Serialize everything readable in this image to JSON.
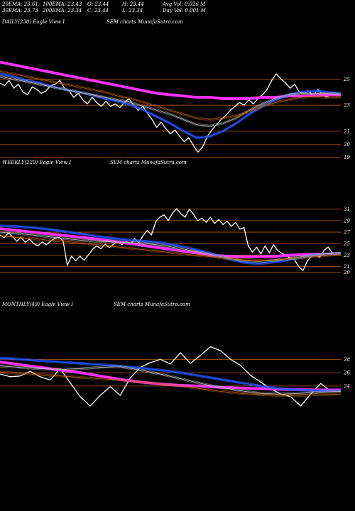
{
  "header": {
    "ema20": "20EMA: 23.61",
    "ema30": "30EMA: 23.73",
    "ema100": "100EMA: 23.43",
    "ema200": "200EMA: 23.34",
    "open": "O: 23.44",
    "close": "C: 23.44",
    "high": "H: 23.44",
    "low": "L: 23.34",
    "avgvol": "Avg Vol: 0.026  M",
    "dayvol": "Day Vol: 0.001 M"
  },
  "colors": {
    "price": "#ffffff",
    "ema_blue": "#2255ff",
    "ema_magenta": "#ff33ff",
    "ema_orange": "#cc6600",
    "ema_gray": "#bbbbbb",
    "level": "#b85a10"
  },
  "chart_data": [
    {
      "type": "line",
      "title": "DAILY(230) Eagle  View  I",
      "subtitle": "SEM charts MunafaSutra.com",
      "y_ticks": [
        "25",
        "23",
        "21",
        "20",
        "19"
      ],
      "series": [
        {
          "role": "price",
          "values": [
            24.7,
            24.5,
            24.9,
            24.3,
            24.6,
            24.0,
            23.8,
            24.4,
            24.2,
            23.9,
            24.1,
            24.5,
            24.6,
            24.9,
            24.3,
            24.1,
            23.6,
            23.9,
            23.4,
            23.1,
            23.6,
            23.2,
            22.9,
            23.3,
            22.9,
            23.1,
            22.8,
            23.2,
            23.5,
            23.0,
            22.6,
            22.9,
            22.4,
            21.9,
            21.3,
            21.7,
            21.2,
            20.8,
            21.1,
            20.6,
            20.2,
            20.5,
            19.9,
            19.4,
            19.8,
            20.6,
            21.1,
            21.5,
            21.9,
            22.2,
            22.6,
            22.9,
            23.2,
            23.0,
            23.4,
            23.1,
            23.5,
            23.8,
            24.2,
            24.9,
            25.4,
            25.0,
            24.7,
            24.3,
            24.6,
            24.0,
            23.9,
            24.1,
            23.7,
            24.2,
            23.8,
            23.6,
            23.9,
            23.7,
            23.8
          ]
        },
        {
          "role": "ema_magenta",
          "values": [
            26.3,
            26.1,
            25.9,
            25.7,
            25.5,
            25.3,
            25.1,
            24.9,
            24.7,
            24.5,
            24.3,
            24.1,
            23.9,
            23.8,
            23.7,
            23.6,
            23.6,
            23.5,
            23.5,
            23.5,
            23.6,
            23.6,
            23.7,
            23.7,
            23.75,
            23.8,
            23.8
          ]
        },
        {
          "role": "ema_blue",
          "values": [
            25.4,
            25.2,
            24.9,
            24.7,
            24.4,
            24.2,
            24.0,
            23.8,
            23.5,
            23.3,
            23.0,
            22.6,
            22.1,
            21.6,
            21.0,
            20.5,
            20.6,
            21.0,
            21.6,
            22.3,
            22.9,
            23.4,
            23.8,
            24.0,
            24.1,
            24.0,
            23.9
          ]
        },
        {
          "role": "ema_gray",
          "values": [
            25.2,
            25.0,
            24.8,
            24.6,
            24.4,
            24.2,
            24.0,
            23.8,
            23.6,
            23.4,
            23.2,
            22.9,
            22.6,
            22.3,
            21.9,
            21.5,
            21.4,
            21.6,
            22.0,
            22.6,
            23.1,
            23.5,
            23.8,
            23.9,
            23.9,
            23.9,
            23.85
          ]
        },
        {
          "role": "ema_orange",
          "values": [
            25.6,
            25.4,
            25.2,
            25.0,
            24.8,
            24.6,
            24.4,
            24.2,
            24.0,
            23.7,
            23.5,
            23.2,
            22.9,
            22.6,
            22.3,
            22.0,
            21.9,
            22.0,
            22.2,
            22.5,
            22.9,
            23.2,
            23.4,
            23.6,
            23.65,
            23.6,
            23.6
          ]
        }
      ]
    },
    {
      "type": "line",
      "title": "WEEKLY(229) Eagle  View  I",
      "subtitle": "SEM charts MunafaSutra.com",
      "y_ticks": [
        "31",
        "29",
        "27",
        "25",
        "23",
        "21",
        "20"
      ],
      "series": [
        {
          "role": "price",
          "values": [
            26.5,
            26.0,
            26.9,
            26.2,
            25.4,
            26.1,
            25.2,
            25.8,
            25.0,
            24.6,
            25.3,
            24.8,
            25.4,
            25.9,
            26.1,
            25.5,
            21.2,
            22.8,
            22.0,
            22.8,
            22.1,
            23.0,
            24.0,
            24.6,
            24.1,
            24.9,
            24.3,
            24.9,
            25.3,
            24.8,
            25.4,
            24.8,
            25.9,
            25.2,
            26.4,
            27.3,
            26.5,
            28.8,
            29.6,
            30.0,
            29.0,
            30.3,
            31.1,
            30.2,
            29.6,
            31.0,
            30.1,
            29.0,
            29.4,
            28.7,
            29.6,
            28.5,
            29.2,
            28.3,
            28.9,
            28.0,
            28.7,
            27.5,
            27.8,
            24.6,
            23.5,
            24.4,
            23.2,
            24.6,
            23.4,
            24.8,
            23.8,
            23.3,
            23.0,
            22.5,
            22.2,
            21.0,
            20.3,
            21.9,
            22.8,
            23.0,
            22.6,
            23.8,
            24.4,
            23.4,
            23.2,
            23.4
          ]
        },
        {
          "role": "ema_magenta",
          "values": [
            27.6,
            27.3,
            27.0,
            26.7,
            26.4,
            26.1,
            25.8,
            25.4,
            25.0,
            24.6,
            24.2,
            23.8,
            23.4,
            23.0,
            22.8,
            22.7,
            22.7,
            22.8,
            23.0,
            23.1,
            23.2,
            23.3
          ]
        },
        {
          "role": "ema_blue",
          "values": [
            28.1,
            28.0,
            27.8,
            27.5,
            27.1,
            26.7,
            26.3,
            25.9,
            25.6,
            25.4,
            25.1,
            24.6,
            24.0,
            23.3,
            22.4,
            21.7,
            21.5,
            21.8,
            22.3,
            22.8,
            23.2,
            23.3
          ]
        },
        {
          "role": "ema_gray",
          "values": [
            27.0,
            26.8,
            26.5,
            26.2,
            25.9,
            25.6,
            25.4,
            25.3,
            25.2,
            25.0,
            24.7,
            24.2,
            23.7,
            23.1,
            22.5,
            22.0,
            21.9,
            22.1,
            22.5,
            22.9,
            23.2,
            23.3
          ]
        },
        {
          "role": "ema_orange",
          "values": [
            26.3,
            26.1,
            25.9,
            25.6,
            25.4,
            25.1,
            24.8,
            24.5,
            24.2,
            23.9,
            23.6,
            23.3,
            23.0,
            22.7,
            22.4,
            22.2,
            22.1,
            22.2,
            22.4,
            22.6,
            22.9,
            23.1
          ]
        }
      ]
    },
    {
      "type": "line",
      "title": "MONTHLY(49) Eagle  View  I",
      "subtitle": "SEM charts MunafaSutra.com",
      "y_ticks": [
        "28",
        "26",
        "24"
      ],
      "series": [
        {
          "role": "price",
          "values": [
            25.8,
            25.4,
            25.5,
            26.2,
            25.4,
            24.9,
            26.6,
            24.5,
            22.4,
            21.0,
            22.6,
            23.9,
            22.6,
            25.2,
            26.8,
            27.5,
            28.0,
            27.3,
            29.0,
            27.4,
            28.6,
            29.9,
            29.3,
            28.0,
            27.1,
            25.6,
            24.6,
            23.6,
            22.8,
            22.4,
            21.0,
            22.8,
            24.4,
            23.2,
            23.5
          ]
        },
        {
          "role": "ema_magenta",
          "values": [
            27.6,
            27.2,
            26.8,
            26.4,
            26.0,
            25.5,
            25.0,
            24.6,
            24.3,
            24.1,
            24.0,
            23.8,
            23.7,
            23.6,
            23.5,
            23.45,
            23.4,
            23.4
          ]
        },
        {
          "role": "ema_blue",
          "values": [
            28.2,
            28.0,
            27.8,
            27.6,
            27.4,
            27.2,
            27.0,
            26.7,
            26.4,
            26.0,
            25.5,
            25.0,
            24.5,
            24.0,
            23.6,
            23.4,
            23.3,
            23.3
          ]
        },
        {
          "role": "ema_gray",
          "values": [
            27.0,
            26.8,
            26.6,
            26.5,
            26.6,
            26.8,
            26.9,
            26.4,
            25.8,
            25.1,
            24.4,
            23.8,
            23.3,
            22.9,
            22.8,
            22.9,
            23.1,
            23.2
          ]
        },
        {
          "role": "ema_orange",
          "values": [
            26.1,
            25.9,
            25.7,
            25.5,
            25.3,
            25.1,
            24.9,
            24.6,
            24.3,
            24.0,
            23.6,
            23.2,
            22.9,
            22.7,
            22.6,
            22.6,
            22.7,
            22.8
          ]
        }
      ]
    }
  ]
}
